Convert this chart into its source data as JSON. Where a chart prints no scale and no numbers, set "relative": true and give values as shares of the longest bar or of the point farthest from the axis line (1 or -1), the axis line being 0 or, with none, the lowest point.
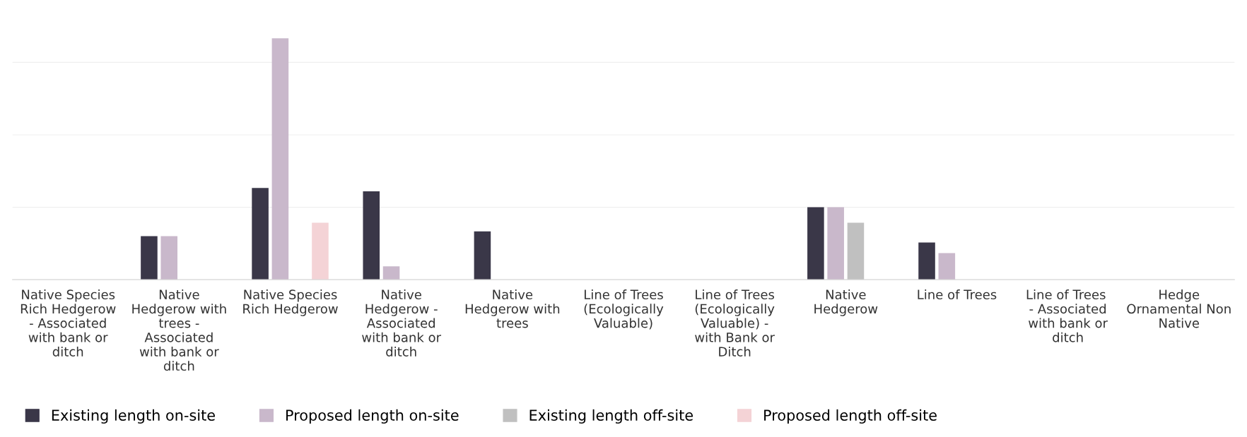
{
  "chart_data": {
    "type": "bar",
    "relative": true,
    "grid": "y",
    "legend": "bottom left",
    "categories": [
      "Native Species Rich Hedgerow - Associated with bank or ditch",
      "Native Hedgerow with trees - Associated with bank or ditch",
      "Native Species Rich Hedgerow",
      "Native Hedgerow - Associated with bank or ditch",
      "Native Hedgerow with trees",
      "Line of Trees (Ecologically Valuable)",
      "Line of Trees (Ecologically Valuable) - with Bank or Ditch",
      "Native Hedgerow",
      "Line of Trees",
      "Line of Trees  - Associated with bank or ditch",
      "Hedge Ornamental Non Native"
    ],
    "series": [
      {
        "name": "Existing length on-site",
        "color": "#3a3748",
        "values": [
          null,
          0.18,
          0.38,
          0.366,
          0.2,
          null,
          null,
          0.3,
          0.154,
          null,
          null
        ]
      },
      {
        "name": "Proposed length on-site",
        "color": "#c9b8cb",
        "values": [
          null,
          0.18,
          1,
          0.055,
          null,
          null,
          null,
          0.3,
          0.11,
          null,
          null
        ]
      },
      {
        "name": "Existing length off-site",
        "color": "#c0c0c0",
        "values": [
          null,
          null,
          null,
          null,
          null,
          null,
          null,
          0.236,
          null,
          null,
          null
        ]
      },
      {
        "name": "Proposed length off-site",
        "color": "#f4d3d6",
        "values": [
          null,
          null,
          0.236,
          null,
          null,
          null,
          null,
          null,
          null,
          null,
          null
        ]
      }
    ]
  }
}
